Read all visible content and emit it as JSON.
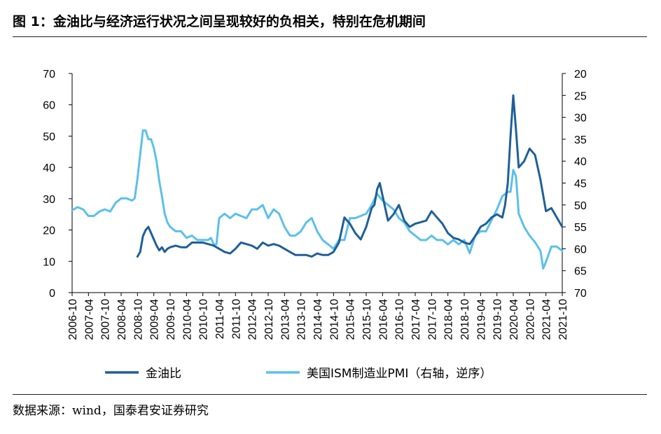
{
  "title": "图 1：金油比与经济运行状况之间呈现较好的负相关，特别在危机期间",
  "source": "数据来源：wind，国泰君安证券研究",
  "chart_data": {
    "type": "line",
    "x_tick_labels": [
      "2006-10",
      "2007-04",
      "2007-10",
      "2008-04",
      "2008-10",
      "2009-04",
      "2009-10",
      "2010-04",
      "2010-10",
      "2011-04",
      "2011-10",
      "2012-04",
      "2012-10",
      "2013-04",
      "2013-10",
      "2014-04",
      "2014-10",
      "2015-04",
      "2015-10",
      "2016-04",
      "2016-10",
      "2017-04",
      "2017-10",
      "2018-04",
      "2018-10",
      "2019-04",
      "2019-10",
      "2020-04",
      "2020-10",
      "2021-04",
      "2021-10"
    ],
    "left_axis": {
      "ylim": [
        0,
        70
      ],
      "ticks": [
        "0",
        "10",
        "20",
        "30",
        "40",
        "50",
        "60",
        "70"
      ]
    },
    "right_axis": {
      "ylim": [
        20,
        70
      ],
      "reversed": true,
      "ticks": [
        "20",
        "25",
        "30",
        "35",
        "40",
        "45",
        "50",
        "55",
        "60",
        "65",
        "70"
      ]
    },
    "grid": false,
    "legend_position": "bottom",
    "series": [
      {
        "name": "金油比",
        "axis": "left",
        "color": "#1f5f99",
        "x": [
          "2008-10",
          "2008-11",
          "2008-12",
          "2009-01",
          "2009-02",
          "2009-03",
          "2009-04",
          "2009-05",
          "2009-06",
          "2009-07",
          "2009-08",
          "2009-09",
          "2009-10",
          "2009-12",
          "2010-02",
          "2010-04",
          "2010-06",
          "2010-08",
          "2010-10",
          "2010-12",
          "2011-02",
          "2011-04",
          "2011-06",
          "2011-08",
          "2011-10",
          "2011-12",
          "2012-02",
          "2012-04",
          "2012-06",
          "2012-08",
          "2012-10",
          "2012-12",
          "2013-02",
          "2013-04",
          "2013-06",
          "2013-08",
          "2013-10",
          "2013-12",
          "2014-02",
          "2014-04",
          "2014-06",
          "2014-08",
          "2014-10",
          "2014-12",
          "2015-01",
          "2015-02",
          "2015-04",
          "2015-06",
          "2015-08",
          "2015-10",
          "2015-12",
          "2016-01",
          "2016-02",
          "2016-03",
          "2016-04",
          "2016-06",
          "2016-08",
          "2016-10",
          "2016-12",
          "2017-02",
          "2017-04",
          "2017-06",
          "2017-08",
          "2017-10",
          "2017-12",
          "2018-02",
          "2018-04",
          "2018-06",
          "2018-08",
          "2018-10",
          "2018-12",
          "2019-02",
          "2019-04",
          "2019-06",
          "2019-08",
          "2019-10",
          "2019-12",
          "2020-01",
          "2020-02",
          "2020-03",
          "2020-04",
          "2020-05",
          "2020-06",
          "2020-08",
          "2020-10",
          "2020-12",
          "2021-02",
          "2021-04",
          "2021-06",
          "2021-08",
          "2021-10"
        ],
        "values": [
          11.5,
          13,
          18,
          20,
          21,
          19,
          17,
          15,
          13.5,
          14.5,
          13,
          14,
          14.5,
          15,
          14.5,
          14.5,
          16,
          16,
          16,
          15.5,
          15,
          14,
          13,
          12.5,
          14,
          16,
          15.5,
          15,
          14,
          16,
          15,
          15.5,
          15,
          14,
          13,
          12,
          12,
          12,
          11.5,
          12.5,
          12,
          12,
          13,
          16,
          20,
          24,
          22,
          19,
          17,
          21,
          27,
          28,
          33,
          35,
          31,
          23,
          25,
          28,
          23,
          21,
          22,
          22.5,
          23,
          26,
          24,
          22,
          19,
          17.5,
          17,
          16,
          15.5,
          18,
          21,
          22,
          24,
          25,
          24,
          28,
          35,
          50,
          63,
          52,
          40,
          42,
          46,
          44,
          36,
          26,
          27,
          24,
          21
        ]
      },
      {
        "name": "美国ISM制造业PMI（右轴，逆序）",
        "axis": "right",
        "color": "#5bc0eb",
        "x": [
          "2006-10",
          "2006-12",
          "2007-02",
          "2007-04",
          "2007-06",
          "2007-08",
          "2007-10",
          "2007-12",
          "2008-02",
          "2008-04",
          "2008-06",
          "2008-08",
          "2008-09",
          "2008-10",
          "2008-11",
          "2008-12",
          "2009-01",
          "2009-02",
          "2009-03",
          "2009-04",
          "2009-05",
          "2009-06",
          "2009-07",
          "2009-08",
          "2009-09",
          "2009-10",
          "2009-12",
          "2010-02",
          "2010-04",
          "2010-06",
          "2010-08",
          "2010-10",
          "2010-12",
          "2011-01",
          "2011-02",
          "2011-03",
          "2011-04",
          "2011-06",
          "2011-08",
          "2011-10",
          "2011-12",
          "2012-02",
          "2012-04",
          "2012-06",
          "2012-08",
          "2012-10",
          "2012-12",
          "2013-02",
          "2013-04",
          "2013-06",
          "2013-08",
          "2013-10",
          "2013-12",
          "2014-02",
          "2014-04",
          "2014-06",
          "2014-08",
          "2014-10",
          "2014-12",
          "2015-02",
          "2015-04",
          "2015-06",
          "2015-08",
          "2015-10",
          "2015-12",
          "2016-02",
          "2016-04",
          "2016-06",
          "2016-08",
          "2016-10",
          "2016-12",
          "2017-02",
          "2017-04",
          "2017-06",
          "2017-08",
          "2017-10",
          "2017-12",
          "2018-02",
          "2018-04",
          "2018-06",
          "2018-08",
          "2018-10",
          "2018-12",
          "2019-02",
          "2019-04",
          "2019-06",
          "2019-08",
          "2019-10",
          "2019-12",
          "2020-02",
          "2020-03",
          "2020-04",
          "2020-05",
          "2020-06",
          "2020-08",
          "2020-10",
          "2020-12",
          "2021-02",
          "2021-03",
          "2021-04",
          "2021-06",
          "2021-08",
          "2021-10"
        ],
        "values": [
          51.2,
          50.5,
          51,
          52.5,
          52.5,
          51.5,
          51,
          51.5,
          49.5,
          48.5,
          48.5,
          49,
          48.5,
          44,
          38.5,
          33,
          33,
          35,
          35,
          37,
          40,
          44.5,
          48,
          52,
          54,
          55,
          56,
          56,
          57.5,
          57,
          58,
          58,
          58,
          57.5,
          59,
          59,
          53,
          52,
          53,
          52,
          52.5,
          53,
          51,
          51,
          50,
          53,
          51,
          52,
          55,
          57,
          57,
          56,
          54,
          53,
          56,
          58,
          59,
          60,
          58,
          58,
          53,
          53,
          52.5,
          52,
          50,
          47.5,
          49,
          50,
          51,
          53,
          54,
          56,
          57,
          58,
          58,
          57,
          58,
          58,
          59,
          58,
          59,
          58,
          61,
          57,
          56,
          56,
          53.5,
          51,
          48,
          47,
          47,
          42,
          43.5,
          52,
          55,
          57,
          58.5,
          60.5,
          64.5,
          63,
          59.5,
          59.5,
          60.5
        ]
      }
    ]
  },
  "legend": [
    {
      "label": "金油比",
      "color": "#1f5f99"
    },
    {
      "label": "美国ISM制造业PMI（右轴，逆序）",
      "color": "#5bc0eb"
    }
  ]
}
